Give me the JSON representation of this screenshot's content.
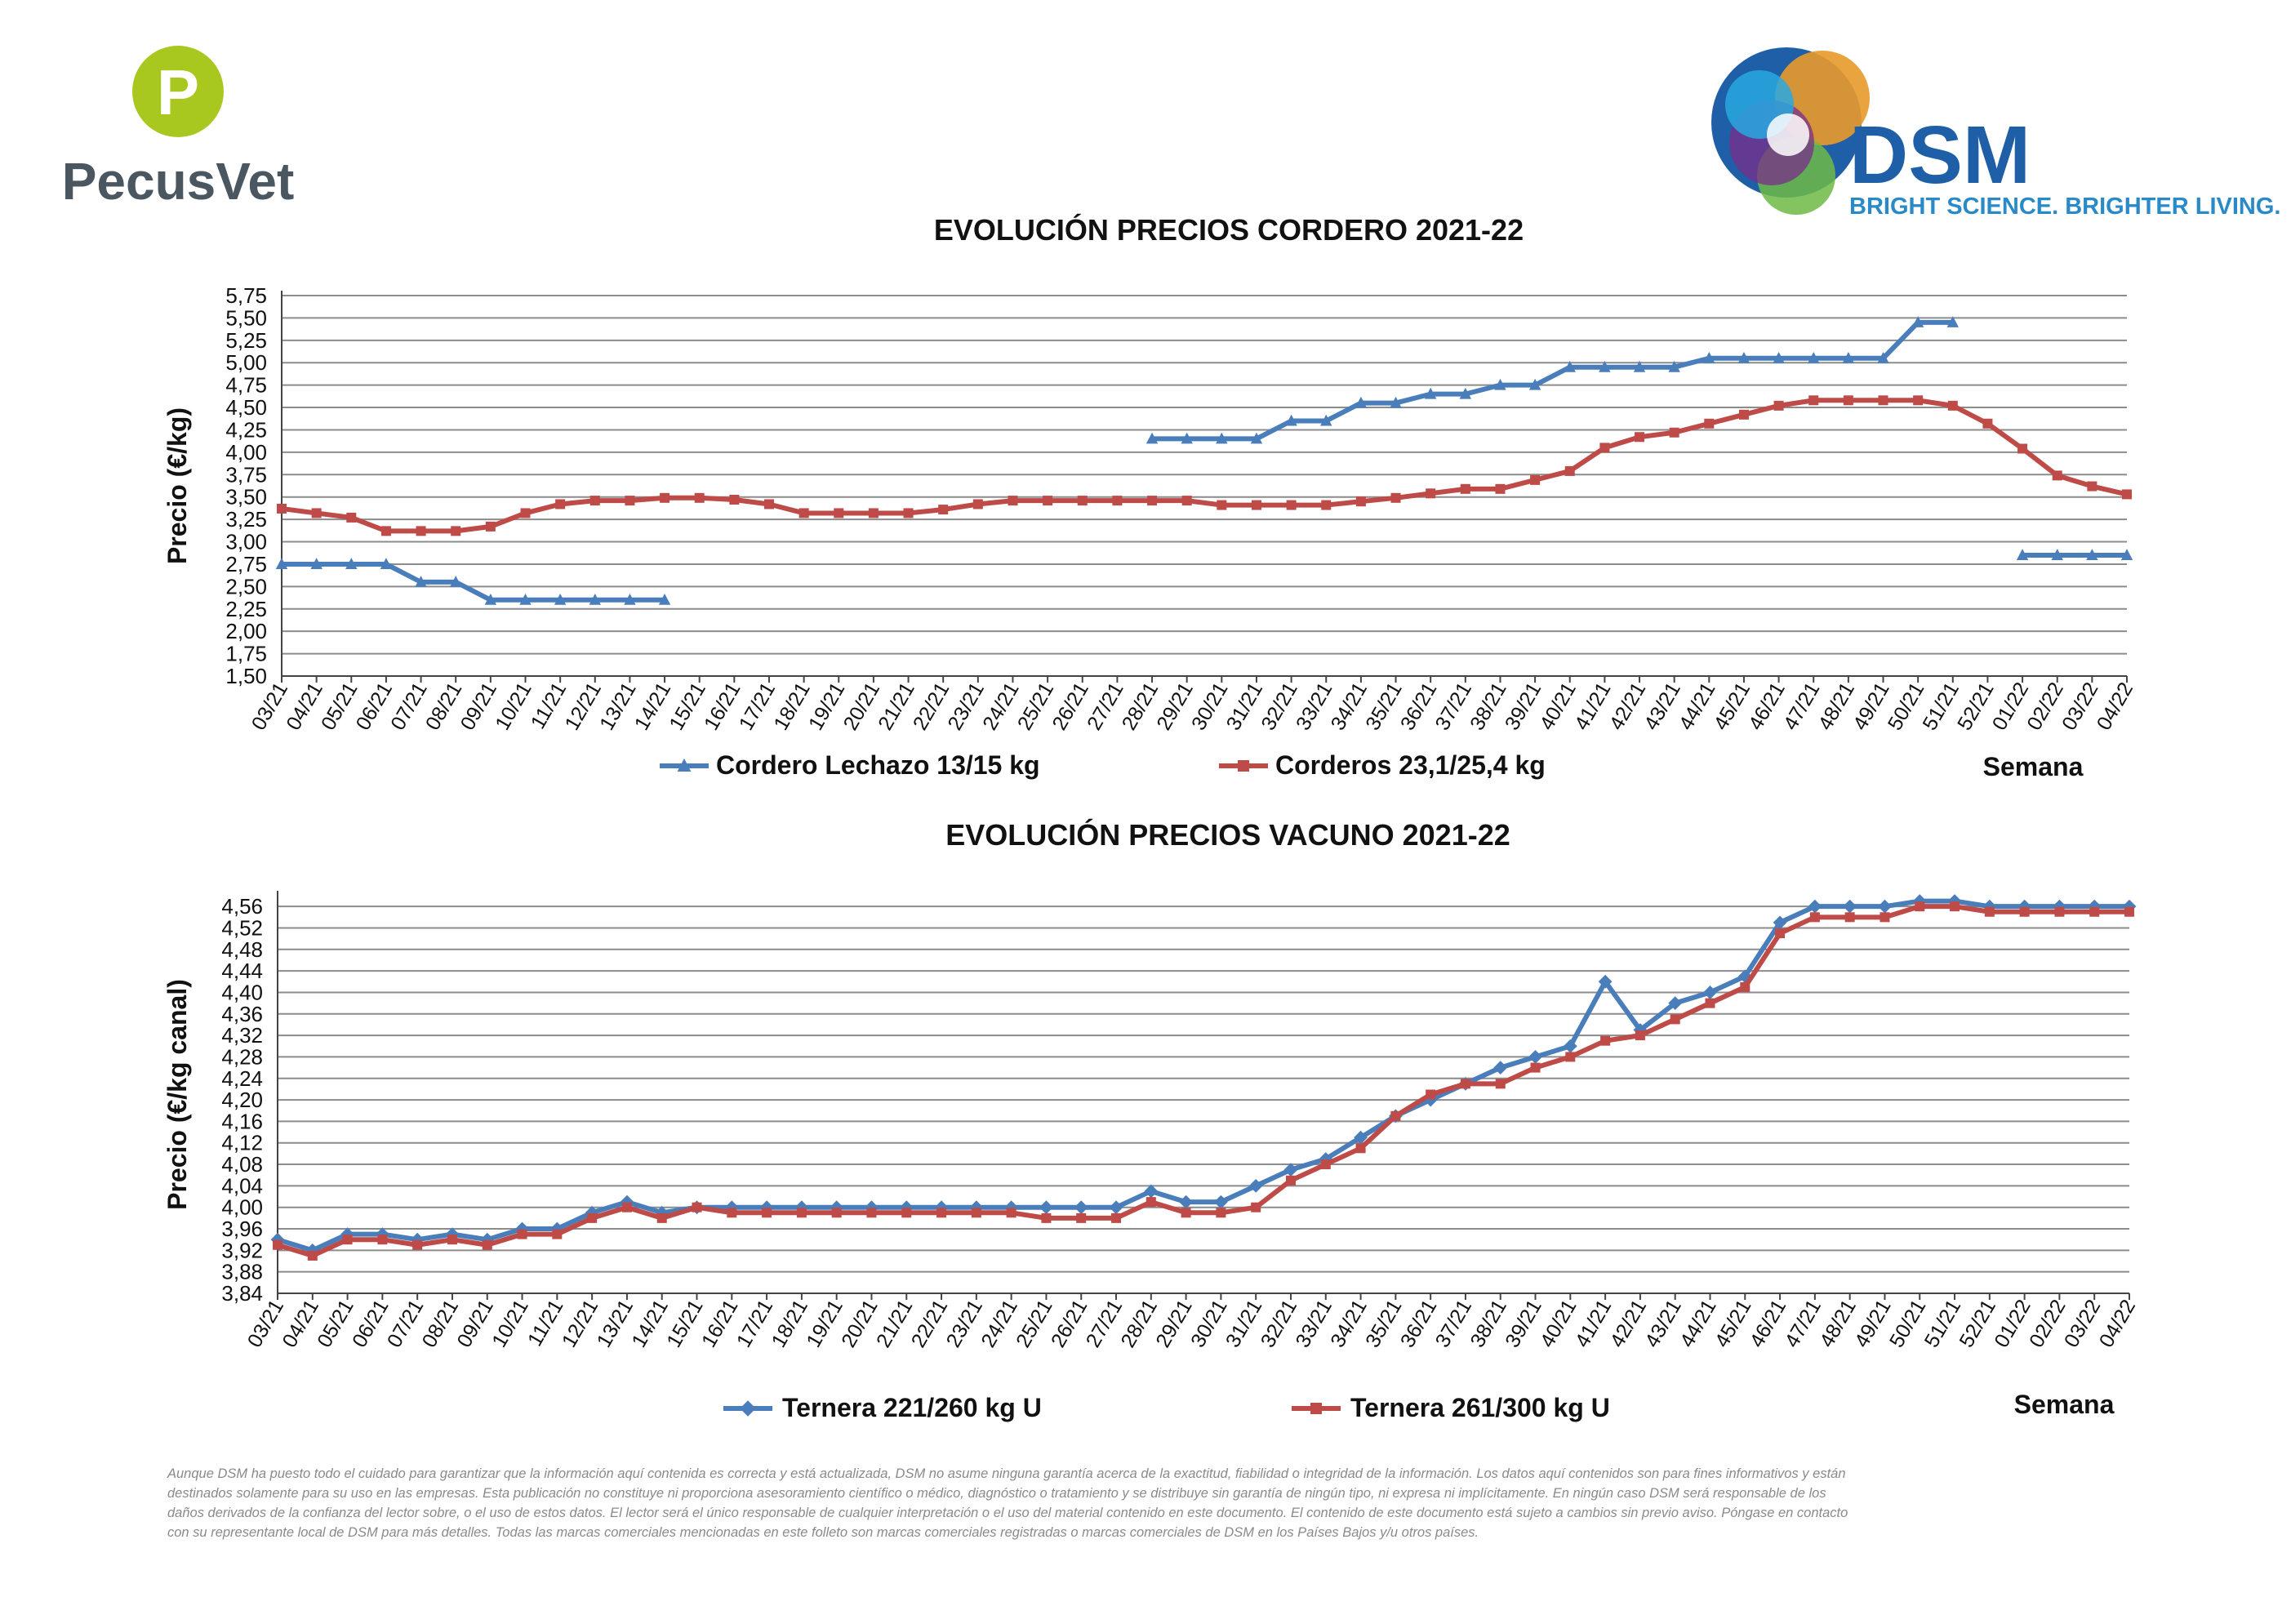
{
  "branding": {
    "pecus_name": "PecusVet",
    "pecus_mark": "P",
    "dsm_name": "DSM",
    "dsm_tagline": "BRIGHT SCIENCE. BRIGHTER LIVING.",
    "colors": {
      "pecus_green": "#a8c81f",
      "pecus_text": "#4a5660",
      "dsm_blue": "#1f5fa8",
      "dsm_tagline": "#2a8ac8"
    }
  },
  "disclaimer": [
    "Aunque DSM ha puesto todo el cuidado para garantizar que la información aquí contenida es correcta y está actualizada, DSM no asume ninguna garantía acerca de la exactitud, fiabilidad o integridad de la información. Los datos aquí contenidos son para fines informativos y están",
    "destinados solamente para su uso en las empresas. Esta publicación no constituye ni proporciona asesoramiento científico o médico, diagnóstico o tratamiento y se distribuye sin garantía de ningún tipo, ni expresa ni implícitamente. En ningún caso DSM será responsable de los",
    "daños derivados de la confianza del lector sobre, o el uso de estos datos. El lector será el único responsable de cualquier interpretación o el uso del material contenido en este documento. El contenido de este documento está sujeto a cambios sin previo aviso. Póngase en contacto",
    "con su representante local de DSM para más detalles. Todas las marcas comerciales mencionadas en este folleto son marcas comerciales registradas o marcas comerciales de DSM en los Países Bajos y/u otros países."
  ],
  "chart_data": [
    {
      "type": "line",
      "title": "EVOLUCIÓN PRECIOS CORDERO 2021-22",
      "xlabel": "Semana",
      "ylabel": "Precio (€/kg)",
      "ylim": [
        1.5,
        5.75
      ],
      "y_ticks": [
        "1,50",
        "1,75",
        "2,00",
        "2,25",
        "2,50",
        "2,75",
        "3,00",
        "3,25",
        "3,50",
        "3,75",
        "4,00",
        "4,25",
        "4,50",
        "4,75",
        "5,00",
        "5,25",
        "5,50",
        "5,75"
      ],
      "grid": true,
      "legend_position": "bottom",
      "categories": [
        "03/21",
        "04/21",
        "05/21",
        "06/21",
        "07/21",
        "08/21",
        "09/21",
        "10/21",
        "11/21",
        "12/21",
        "13/21",
        "14/21",
        "15/21",
        "16/21",
        "17/21",
        "18/21",
        "19/21",
        "20/21",
        "21/21",
        "22/21",
        "23/21",
        "24/21",
        "25/21",
        "26/21",
        "27/21",
        "28/21",
        "29/21",
        "30/21",
        "31/21",
        "32/21",
        "33/21",
        "34/21",
        "35/21",
        "36/21",
        "37/21",
        "38/21",
        "39/21",
        "40/21",
        "41/21",
        "42/21",
        "43/21",
        "44/21",
        "45/21",
        "46/21",
        "47/21",
        "48/21",
        "49/21",
        "50/21",
        "51/21",
        "52/21",
        "01/22",
        "02/22",
        "03/22",
        "04/22"
      ],
      "series": [
        {
          "name": "Cordero Lechazo 13/15 kg",
          "color": "#4a7ebb",
          "marker": "triangle",
          "values": [
            2.75,
            2.75,
            2.75,
            2.75,
            2.55,
            2.55,
            2.35,
            2.35,
            2.35,
            2.35,
            2.35,
            2.35,
            null,
            null,
            null,
            null,
            null,
            null,
            null,
            null,
            null,
            null,
            null,
            null,
            null,
            4.15,
            4.15,
            4.15,
            4.15,
            4.35,
            4.35,
            4.55,
            4.55,
            4.65,
            4.65,
            4.75,
            4.75,
            4.95,
            4.95,
            4.95,
            4.95,
            5.05,
            5.05,
            5.05,
            5.05,
            5.05,
            5.05,
            5.45,
            5.45,
            null,
            2.85,
            2.85,
            2.85,
            2.85
          ]
        },
        {
          "name": "Corderos 23,1/25,4 kg",
          "color": "#be4b48",
          "marker": "square",
          "values": [
            3.37,
            3.32,
            3.27,
            3.12,
            3.12,
            3.12,
            3.17,
            3.32,
            3.42,
            3.46,
            3.46,
            3.49,
            3.49,
            3.47,
            3.42,
            3.32,
            3.32,
            3.32,
            3.32,
            3.36,
            3.42,
            3.46,
            3.46,
            3.46,
            3.46,
            3.46,
            3.46,
            3.41,
            3.41,
            3.41,
            3.41,
            3.45,
            3.49,
            3.54,
            3.59,
            3.59,
            3.69,
            3.79,
            4.05,
            4.17,
            4.22,
            4.32,
            4.42,
            4.52,
            4.58,
            4.58,
            4.58,
            4.58,
            4.52,
            4.32,
            4.04,
            3.74,
            3.62,
            3.53
          ]
        }
      ]
    },
    {
      "type": "line",
      "title": "EVOLUCIÓN PRECIOS VACUNO 2021-22",
      "xlabel": "Semana",
      "ylabel": "Precio (€/kg canal)",
      "ylim": [
        3.84,
        4.58
      ],
      "y_ticks": [
        "3,84",
        "3,88",
        "3,92",
        "3,96",
        "4,00",
        "4,04",
        "4,08",
        "4,12",
        "4,16",
        "4,20",
        "4,24",
        "4,28",
        "4,32",
        "4,36",
        "4,40",
        "4,44",
        "4,48",
        "4,52",
        "4,56"
      ],
      "grid": true,
      "legend_position": "bottom",
      "categories": [
        "03/21",
        "04/21",
        "05/21",
        "06/21",
        "07/21",
        "08/21",
        "09/21",
        "10/21",
        "11/21",
        "12/21",
        "13/21",
        "14/21",
        "15/21",
        "16/21",
        "17/21",
        "18/21",
        "19/21",
        "20/21",
        "21/21",
        "22/21",
        "23/21",
        "24/21",
        "25/21",
        "26/21",
        "27/21",
        "28/21",
        "29/21",
        "30/21",
        "31/21",
        "32/21",
        "33/21",
        "34/21",
        "35/21",
        "36/21",
        "37/21",
        "38/21",
        "39/21",
        "40/21",
        "41/21",
        "42/21",
        "43/21",
        "44/21",
        "45/21",
        "46/21",
        "47/21",
        "48/21",
        "49/21",
        "50/21",
        "51/21",
        "52/21",
        "01/22",
        "02/22",
        "03/22",
        "04/22"
      ],
      "series": [
        {
          "name": "Ternera 221/260 kg U",
          "color": "#4a7ebb",
          "marker": "diamond",
          "values": [
            3.94,
            3.92,
            3.95,
            3.95,
            3.94,
            3.95,
            3.94,
            3.96,
            3.96,
            3.99,
            4.01,
            3.99,
            4.0,
            4.0,
            4.0,
            4.0,
            4.0,
            4.0,
            4.0,
            4.0,
            4.0,
            4.0,
            4.0,
            4.0,
            4.0,
            4.03,
            4.01,
            4.01,
            4.04,
            4.07,
            4.09,
            4.13,
            4.17,
            4.2,
            4.23,
            4.26,
            4.28,
            4.3,
            4.42,
            4.33,
            4.38,
            4.4,
            4.43,
            4.53,
            4.56,
            4.56,
            4.56,
            4.57,
            4.57,
            4.56,
            4.56,
            4.56,
            4.56,
            4.56
          ]
        },
        {
          "name": "Ternera 261/300 kg U",
          "color": "#be4b48",
          "marker": "square",
          "values": [
            3.93,
            3.91,
            3.94,
            3.94,
            3.93,
            3.94,
            3.93,
            3.95,
            3.95,
            3.98,
            4.0,
            3.98,
            4.0,
            3.99,
            3.99,
            3.99,
            3.99,
            3.99,
            3.99,
            3.99,
            3.99,
            3.99,
            3.98,
            3.98,
            3.98,
            4.01,
            3.99,
            3.99,
            4.0,
            4.05,
            4.08,
            4.11,
            4.17,
            4.21,
            4.23,
            4.23,
            4.26,
            4.28,
            4.31,
            4.32,
            4.35,
            4.38,
            4.41,
            4.51,
            4.54,
            4.54,
            4.54,
            4.56,
            4.56,
            4.55,
            4.55,
            4.55,
            4.55,
            4.55
          ]
        }
      ]
    }
  ]
}
